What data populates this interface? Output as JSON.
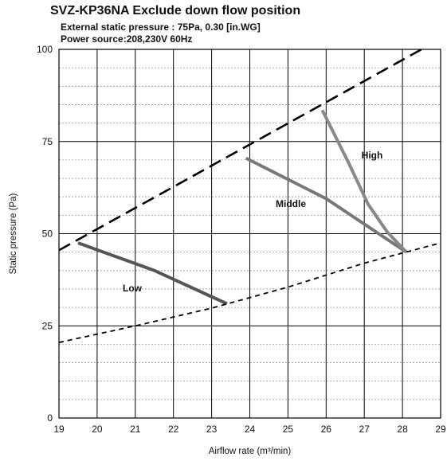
{
  "title": "SVZ-KP36NA Exclude down flow position",
  "subtitle_1": "External static pressure : 75Pa, 0.30 [in.WG]",
  "subtitle_2": "Power source:208,230V 60Hz",
  "chart_data": {
    "type": "line",
    "xlabel": "Airflow rate (m³/min)",
    "ylabel": "Static pressure (Pa)",
    "xlim": [
      19,
      29
    ],
    "ylim": [
      0,
      100
    ],
    "x_ticks": [
      19,
      20,
      21,
      22,
      23,
      24,
      25,
      26,
      27,
      28,
      29
    ],
    "y_ticks": [
      0,
      25,
      50,
      75,
      100
    ],
    "grid": true,
    "series": [
      {
        "name": "Low",
        "style": "solid",
        "color": "#555555",
        "points": [
          [
            19.5,
            47.5
          ],
          [
            21.5,
            40.0
          ],
          [
            23.4,
            31.0
          ]
        ]
      },
      {
        "name": "Middle",
        "style": "solid",
        "color": "#777777",
        "points": [
          [
            23.9,
            70.5
          ],
          [
            26.0,
            59.5
          ],
          [
            28.1,
            45.0
          ]
        ]
      },
      {
        "name": "High",
        "style": "solid",
        "color": "#888888",
        "points": [
          [
            25.9,
            83.5
          ],
          [
            26.6,
            69.0
          ],
          [
            27.1,
            58.0
          ],
          [
            27.6,
            50.5
          ],
          [
            28.1,
            45.0
          ]
        ]
      },
      {
        "name": "",
        "style": "long-dash",
        "color": "#000000",
        "points": [
          [
            19,
            45.5
          ],
          [
            28.5,
            100
          ]
        ]
      },
      {
        "name": "",
        "style": "short-dash",
        "color": "#000000",
        "points": [
          [
            19,
            20.5
          ],
          [
            21,
            25.0
          ],
          [
            23,
            29.8
          ],
          [
            25,
            35.5
          ],
          [
            27,
            42.0
          ],
          [
            29,
            47.5
          ]
        ]
      }
    ]
  }
}
